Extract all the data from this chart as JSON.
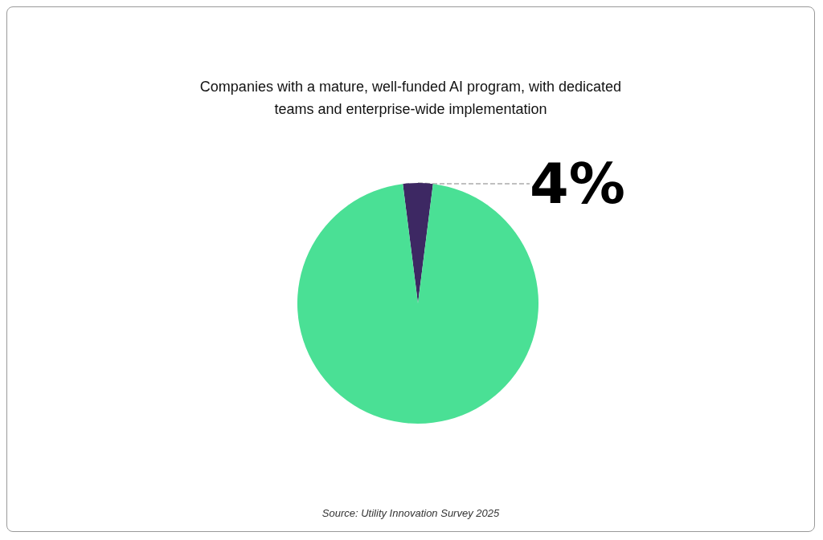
{
  "chart_data": {
    "type": "pie",
    "title": "Companies with a mature, well-funded AI program, with dedicated\nteams and enterprise-wide implementation",
    "categories": [
      null,
      null
    ],
    "values": [
      4,
      96
    ],
    "colors": [
      "#3d2863",
      "#4ae095"
    ],
    "value_labels": [
      "4%",
      null
    ],
    "annotations": [
      "Source: Utility Innovation Survey 2025"
    ]
  }
}
